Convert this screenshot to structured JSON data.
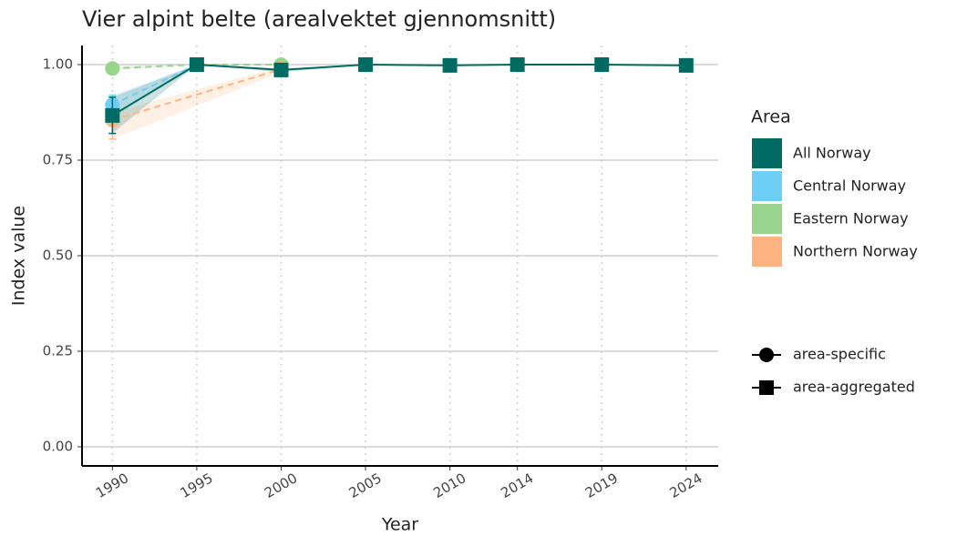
{
  "chart_data": {
    "type": "line",
    "title": "Vier alpint belte (arealvektet gjennomsnitt)",
    "x_label": "Year",
    "y_label": "Index value",
    "xlim": [
      1988.2,
      2025.9
    ],
    "xticks": [
      1990,
      1995,
      2000,
      2005,
      2010,
      2014,
      2019,
      2024
    ],
    "ylim": [
      -0.05,
      1.05
    ],
    "yticks": [
      {
        "value": 0,
        "label": "0.00"
      },
      {
        "value": 0.25,
        "label": "0.25"
      },
      {
        "value": 0.5,
        "label": "0.50"
      },
      {
        "value": 0.75,
        "label": "0.75"
      },
      {
        "value": 1,
        "label": "1.00"
      }
    ],
    "grid": true,
    "legend_title": "Area",
    "shape_legend": [
      {
        "name": "area-specific",
        "shape": "circle"
      },
      {
        "name": "area-aggregated",
        "shape": "square"
      }
    ],
    "series": [
      {
        "name": "Eastern Norway",
        "color": "#98d48e",
        "shape": "circle",
        "dash": true,
        "x": [
          1990,
          1995,
          2000
        ],
        "values": [
          0.99,
          1.0,
          1.0
        ],
        "lower": [
          0.985,
          1.0,
          1.0
        ],
        "upper": [
          0.995,
          1.0,
          1.0
        ]
      },
      {
        "name": "Northern Norway",
        "color": "#ffb380",
        "shape": "circle",
        "dash": true,
        "x": [
          1990,
          2000
        ],
        "values": [
          0.855,
          0.988
        ],
        "lower": [
          0.805,
          0.98
        ],
        "upper": [
          0.875,
          0.995
        ]
      },
      {
        "name": "Central Norway",
        "color": "#6dcff6",
        "shape": "circle",
        "dash": true,
        "x": [
          1990,
          1995
        ],
        "values": [
          0.895,
          1.0
        ],
        "lower": [
          0.86,
          1.0
        ],
        "upper": [
          0.92,
          1.0
        ]
      },
      {
        "name": "All Norway",
        "color": "#006b62",
        "shape": "square",
        "dash": false,
        "x": [
          1990,
          1995,
          2000,
          2005,
          2010,
          2014,
          2019,
          2024
        ],
        "values": [
          0.867,
          1.0,
          0.986,
          1.0,
          0.998,
          1.0,
          1.0,
          0.998
        ],
        "lower": [
          0.82,
          1.0,
          0.98,
          1.0,
          0.998,
          1.0,
          1.0,
          0.998
        ],
        "upper": [
          0.915,
          1.0,
          0.99,
          1.0,
          0.998,
          1.0,
          1.0,
          0.998
        ]
      }
    ],
    "legend_order": [
      3,
      2,
      0,
      1
    ]
  }
}
